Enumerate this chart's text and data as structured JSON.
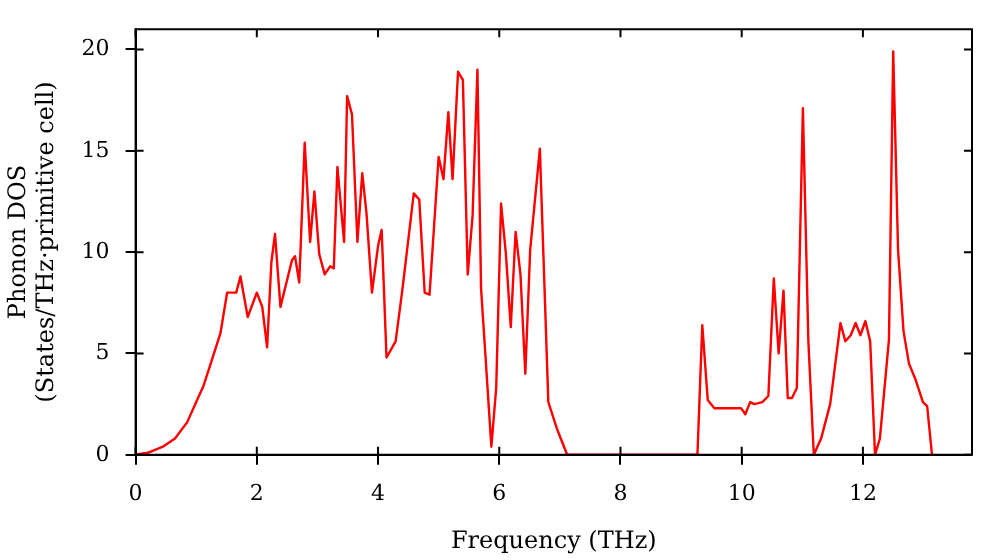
{
  "chart_data": {
    "type": "line",
    "xlabel": "Frequency (THz)",
    "ylabel": "Phonon DOS\n(States/THz·primitive cell)",
    "xlim": [
      0,
      13.8
    ],
    "ylim": [
      0,
      21
    ],
    "xticks": [
      0,
      2,
      4,
      6,
      8,
      10,
      12
    ],
    "yticks": [
      0,
      5,
      10,
      15,
      20
    ],
    "legend": false,
    "marker": "none",
    "line_style": "solid",
    "series": [
      {
        "color": "#ff0000",
        "x": [
          0,
          0.2,
          0.45,
          0.65,
          0.85,
          1.0,
          1.12,
          1.25,
          1.4,
          1.51,
          1.66,
          1.73,
          1.85,
          2.0,
          2.09,
          2.17,
          2.24,
          2.3,
          2.39,
          2.58,
          2.63,
          2.7,
          2.79,
          2.88,
          2.95,
          3.03,
          3.12,
          3.21,
          3.27,
          3.33,
          3.44,
          3.49,
          3.57,
          3.66,
          3.74,
          3.81,
          3.9,
          4.0,
          4.06,
          4.14,
          4.29,
          4.4,
          4.59,
          4.68,
          4.77,
          4.85,
          5.0,
          5.08,
          5.16,
          5.23,
          5.32,
          5.4,
          5.48,
          5.56,
          5.64,
          5.7,
          5.87,
          5.95,
          6.03,
          6.11,
          6.19,
          6.27,
          6.35,
          6.43,
          6.51,
          6.67,
          6.81,
          6.95,
          7.12,
          9.27,
          9.35,
          9.44,
          9.55,
          9.99,
          10.06,
          10.14,
          10.21,
          10.34,
          10.44,
          10.53,
          10.61,
          10.69,
          10.76,
          10.83,
          10.91,
          11.01,
          11.1,
          11.19,
          11.31,
          11.46,
          11.63,
          11.71,
          11.8,
          11.88,
          11.96,
          12.04,
          12.12,
          12.2,
          12.28,
          12.43,
          12.5,
          12.58,
          12.67,
          12.76,
          12.87,
          12.99,
          13.06,
          13.14
        ],
        "values": [
          0,
          0.1,
          0.4,
          0.8,
          1.6,
          2.6,
          3.4,
          4.6,
          6.0,
          8.0,
          8.0,
          8.8,
          6.8,
          8.0,
          7.3,
          5.3,
          9.5,
          10.9,
          7.3,
          9.6,
          9.8,
          8.5,
          15.4,
          10.5,
          13.0,
          9.9,
          8.9,
          9.3,
          9.2,
          14.2,
          10.5,
          17.7,
          16.8,
          10.5,
          13.9,
          11.9,
          8.0,
          10.3,
          11.1,
          4.8,
          5.6,
          8.1,
          12.9,
          12.6,
          8.0,
          7.9,
          14.7,
          13.6,
          16.9,
          13.6,
          18.9,
          18.5,
          8.9,
          11.8,
          19.0,
          8.2,
          0.4,
          3.3,
          12.4,
          9.9,
          6.3,
          11.0,
          8.9,
          4.0,
          10.1,
          15.1,
          2.6,
          1.3,
          0,
          0,
          6.4,
          2.7,
          2.3,
          2.3,
          2.0,
          2.6,
          2.5,
          2.6,
          2.9,
          8.7,
          5.0,
          8.1,
          2.8,
          2.8,
          3.3,
          17.1,
          5.6,
          0,
          0.8,
          2.5,
          6.5,
          5.6,
          5.9,
          6.5,
          5.9,
          6.6,
          5.6,
          0,
          0.8,
          5.7,
          19.9,
          10.1,
          6.1,
          4.5,
          3.7,
          2.6,
          2.4,
          0
        ]
      }
    ]
  }
}
